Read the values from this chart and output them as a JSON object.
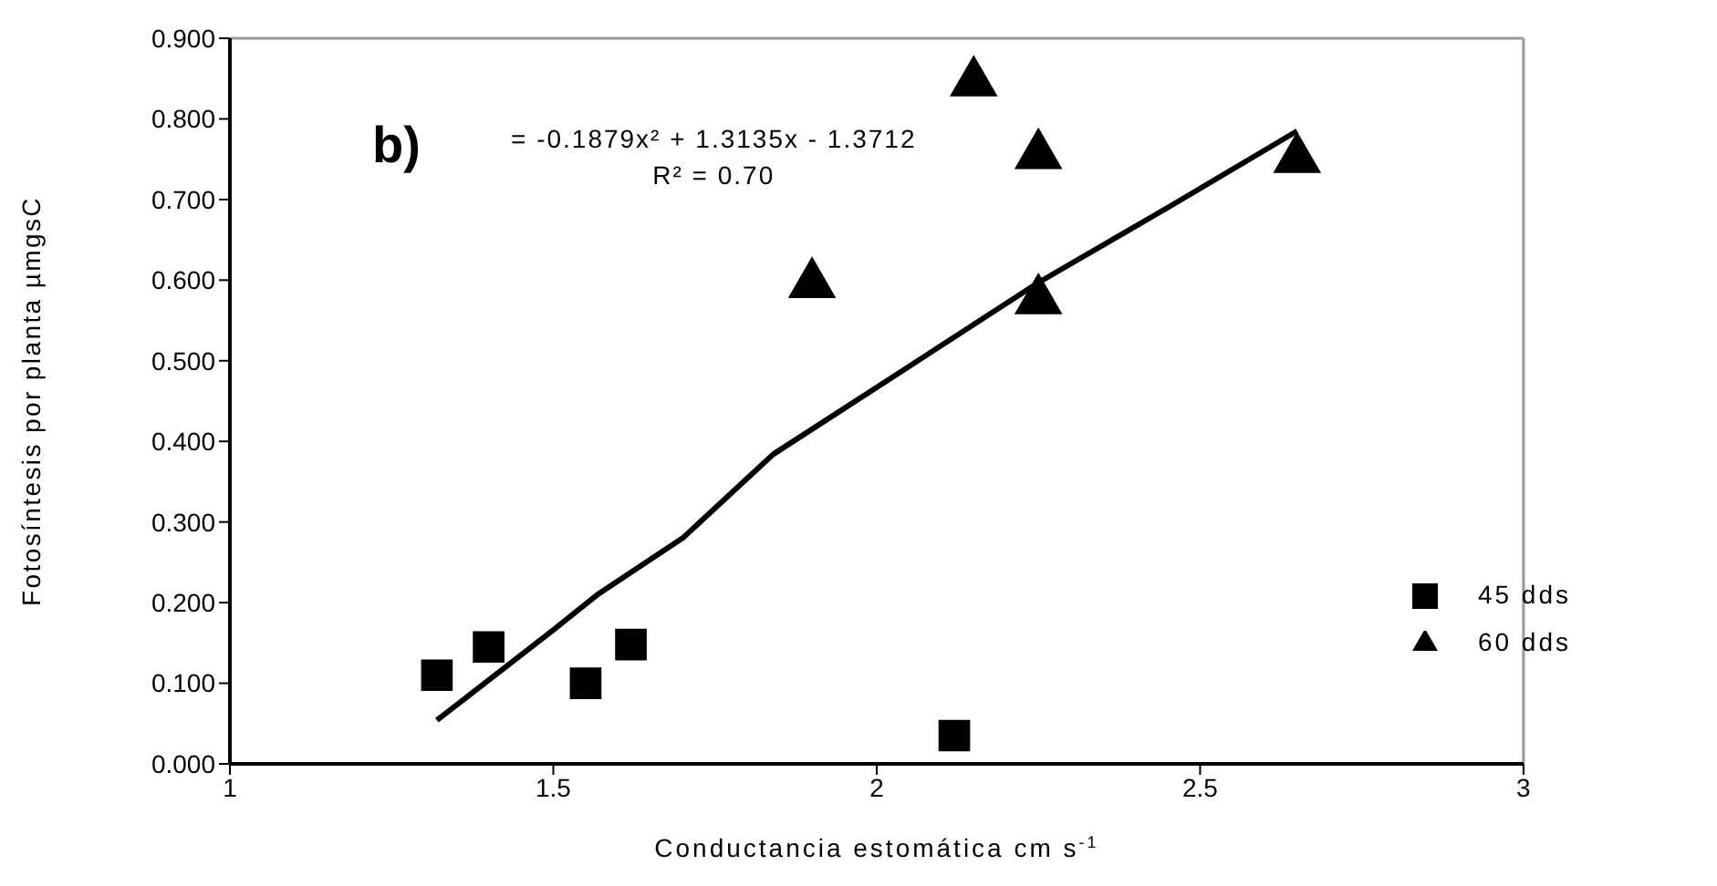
{
  "chart_data": {
    "type": "scatter",
    "xlabel": "Conductancia estomática cm s$^{-1}$",
    "ylabel": "Fotosíntesis por planta µmgsC",
    "xlim": [
      1,
      3
    ],
    "xticks": [
      1,
      1.5,
      2,
      2.5,
      3
    ],
    "ylim": [
      0,
      0.9
    ],
    "yticks": [
      {
        "value": 0,
        "label": "0.000"
      },
      {
        "value": 0.1,
        "label": "0.100"
      },
      {
        "value": 0.2,
        "label": "0.200"
      },
      {
        "value": 0.3,
        "label": "0.300"
      },
      {
        "value": 0.4,
        "label": "0.400"
      },
      {
        "value": 0.5,
        "label": "0.500"
      },
      {
        "value": 0.6,
        "label": "0.600"
      },
      {
        "value": 0.7,
        "label": "0.700"
      },
      {
        "value": 0.8,
        "label": "0.800"
      },
      {
        "value": 0.9,
        "label": "0.900"
      }
    ],
    "grid": false,
    "legend": "right",
    "annotations": [
      "b)",
      "= -0.1879x² + 1.3135x - 1.3712",
      "R² = 0.70"
    ],
    "series": [
      {
        "name": "45 dds",
        "marker": "square",
        "color": "#000000",
        "x": [
          1.32,
          1.4,
          1.55,
          1.62,
          2.12
        ],
        "values": [
          0.11,
          0.145,
          0.1,
          0.148,
          0.035
        ]
      },
      {
        "name": "60 dds",
        "marker": "triangle",
        "color": "#000000",
        "x": [
          1.9,
          2.15,
          2.25,
          2.25,
          2.65
        ],
        "values": [
          0.595,
          0.845,
          0.755,
          0.575,
          0.75
        ]
      },
      {
        "type": "line",
        "marker": "none",
        "line_style": "solid",
        "color": "#000000",
        "x": [
          1.32,
          1.5,
          1.57,
          1.7,
          1.84,
          2.0,
          2.25,
          2.45,
          2.65
        ],
        "values": [
          0.054,
          0.166,
          0.211,
          0.28,
          0.384,
          0.467,
          0.597,
          0.69,
          0.785
        ]
      }
    ]
  }
}
